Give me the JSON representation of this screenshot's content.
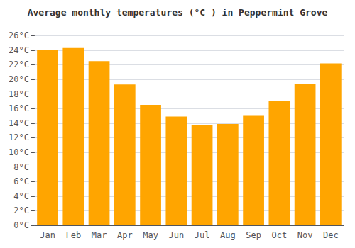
{
  "chart_data": {
    "type": "bar",
    "title": "Average monthly temperatures (°C ) in Peppermint Grove",
    "categories": [
      "Jan",
      "Feb",
      "Mar",
      "Apr",
      "May",
      "Jun",
      "Jul",
      "Aug",
      "Sep",
      "Oct",
      "Nov",
      "Dec"
    ],
    "values": [
      24.0,
      24.3,
      22.5,
      19.3,
      16.5,
      14.9,
      13.7,
      13.9,
      15.0,
      17.0,
      19.4,
      22.2
    ],
    "color": "#FFA500",
    "ylim": [
      0,
      27
    ],
    "yticks": [
      {
        "value": 0,
        "label": "0°C"
      },
      {
        "value": 2,
        "label": "2°C"
      },
      {
        "value": 4,
        "label": "4°C"
      },
      {
        "value": 6,
        "label": "6°C"
      },
      {
        "value": 8,
        "label": "8°C"
      },
      {
        "value": 10,
        "label": "10°C"
      },
      {
        "value": 12,
        "label": "12°C"
      },
      {
        "value": 14,
        "label": "14°C"
      },
      {
        "value": 16,
        "label": "16°C"
      },
      {
        "value": 18,
        "label": "18°C"
      },
      {
        "value": 20,
        "label": "20°C"
      },
      {
        "value": 22,
        "label": "22°C"
      },
      {
        "value": 24,
        "label": "24°C"
      },
      {
        "value": 26,
        "label": "26°C"
      }
    ],
    "grid": true
  }
}
